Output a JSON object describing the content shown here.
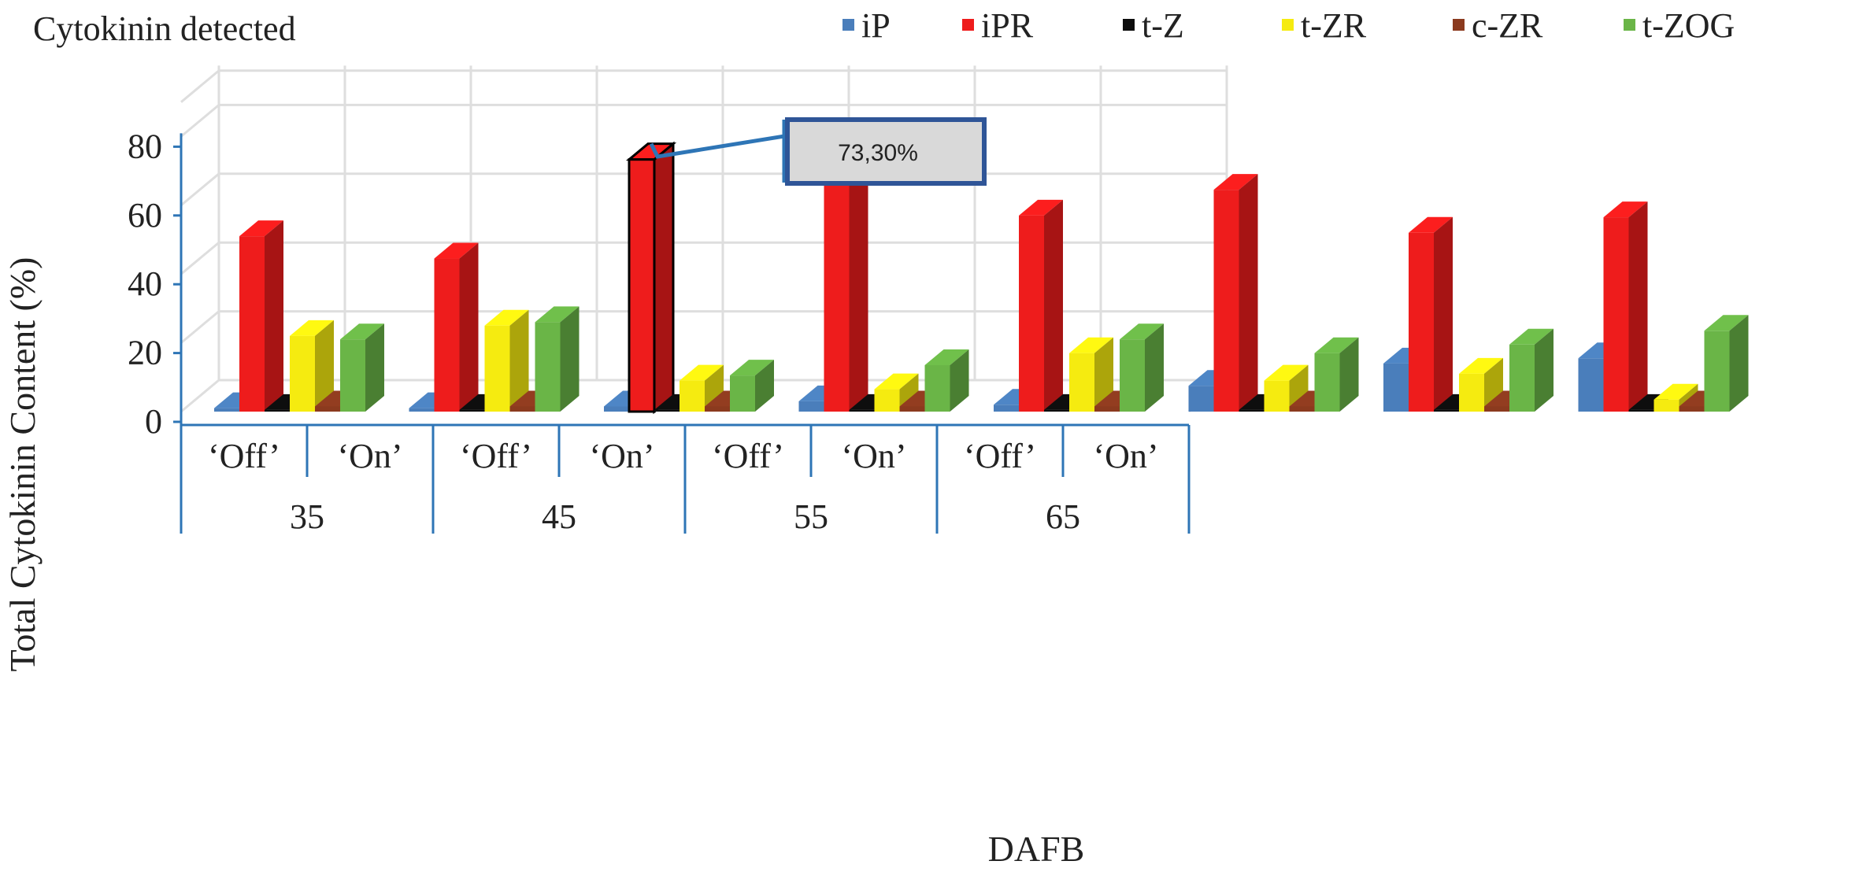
{
  "title": "Cytokinin detected",
  "chart_data": {
    "type": "bar",
    "title": "Cytokinin detected",
    "xlabel": "DAFB",
    "ylabel": "Total Cytokinin Content (%)",
    "ylim": [
      0,
      80
    ],
    "yticks": [
      0,
      20,
      40,
      60,
      80
    ],
    "categories": [
      "'Off'",
      "'On'",
      "'Off'",
      "'On'",
      "'Off'",
      "'On'",
      "'Off'",
      "'On'"
    ],
    "category_tick_labels": [
      "‘Off’",
      "‘On’",
      "‘Off’",
      "‘On’",
      "‘Off’",
      "‘On’",
      "‘Off’",
      "‘On’"
    ],
    "groups": [
      {
        "label": "35",
        "span": [
          0,
          1
        ]
      },
      {
        "label": "45",
        "span": [
          2,
          3
        ]
      },
      {
        "label": "55",
        "span": [
          4,
          5
        ]
      },
      {
        "label": "65",
        "span": [
          6,
          7
        ]
      }
    ],
    "series": [
      {
        "name": "iP",
        "color": "#4a7ebb",
        "values": [
          1,
          1,
          1.5,
          3,
          2,
          7.5,
          14,
          15.5
        ]
      },
      {
        "name": "iPR",
        "color": "#ee1c1c",
        "values": [
          51,
          44.5,
          73.3,
          71.5,
          57,
          64.5,
          52,
          56.5
        ]
      },
      {
        "name": "t-Z",
        "color": "#0d0d0d",
        "values": [
          0.5,
          0.5,
          0.5,
          0.5,
          0.5,
          0.5,
          0.5,
          0.5
        ]
      },
      {
        "name": "t-ZR",
        "color": "#f5eb10",
        "values": [
          22,
          25,
          9,
          6.5,
          17,
          9,
          11,
          3.5
        ]
      },
      {
        "name": "c-ZR",
        "color": "#8b3a1e",
        "values": [
          1.5,
          1.5,
          1.5,
          1.5,
          1.5,
          1.5,
          1.5,
          1.5
        ]
      },
      {
        "name": "t-ZOG",
        "color": "#6ab547",
        "values": [
          21,
          26,
          10.5,
          13.5,
          21,
          17,
          19.5,
          23.5
        ]
      }
    ],
    "highlight": {
      "series": "iPR",
      "category_index": 2,
      "label": "73,30%"
    },
    "grid": true,
    "legend_position": "top"
  }
}
